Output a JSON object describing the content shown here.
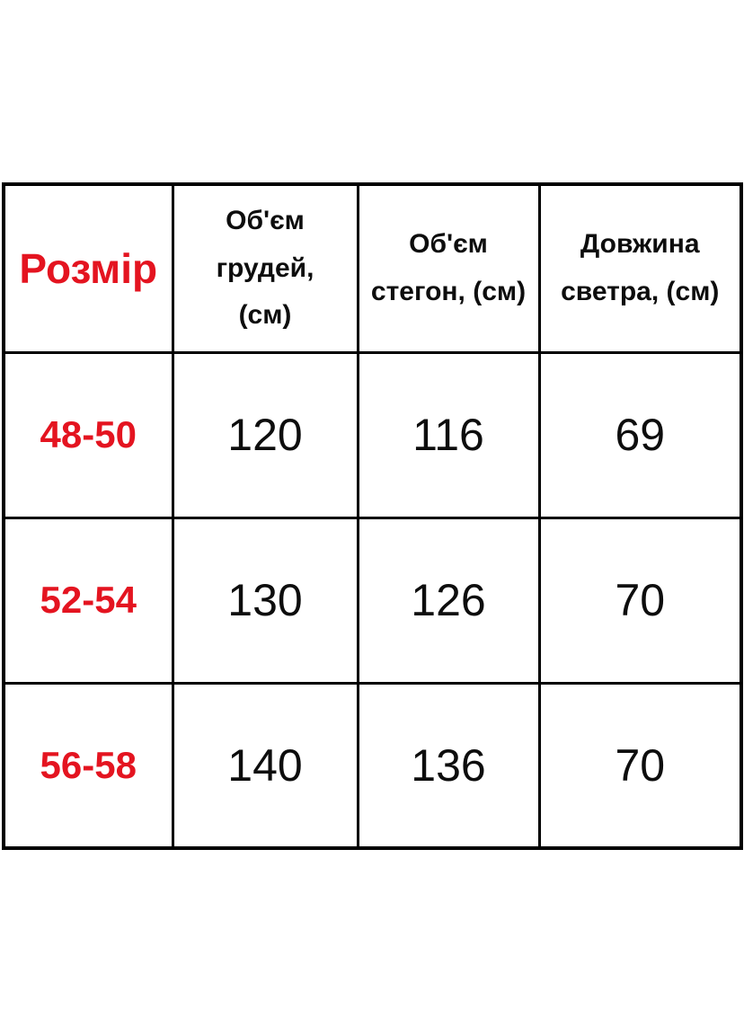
{
  "colors": {
    "accent_red": "#e41420",
    "border": "#000000",
    "text": "#0d0d0d",
    "background": "#ffffff"
  },
  "table": {
    "header": {
      "size": "Розмір",
      "chest_lines": [
        "Об'єм",
        "грудей,",
        "(см)"
      ],
      "hips_lines": [
        "Об'єм",
        "стегон, (см)"
      ],
      "length_lines": [
        "Довжина",
        "светра, (см)"
      ]
    },
    "rows": [
      {
        "size": "48-50",
        "chest": "120",
        "hips": "116",
        "length": "69"
      },
      {
        "size": "52-54",
        "chest": "130",
        "hips": "126",
        "length": "70"
      },
      {
        "size": "56-58",
        "chest": "140",
        "hips": "136",
        "length": "70"
      }
    ]
  },
  "chart_data": {
    "type": "table",
    "title": "",
    "columns": [
      "Розмір",
      "Об'єм грудей, (см)",
      "Об'єм стегон, (см)",
      "Довжина светра, (см)"
    ],
    "rows": [
      [
        "48-50",
        120,
        116,
        69
      ],
      [
        "52-54",
        130,
        126,
        70
      ],
      [
        "56-58",
        140,
        136,
        70
      ]
    ]
  }
}
